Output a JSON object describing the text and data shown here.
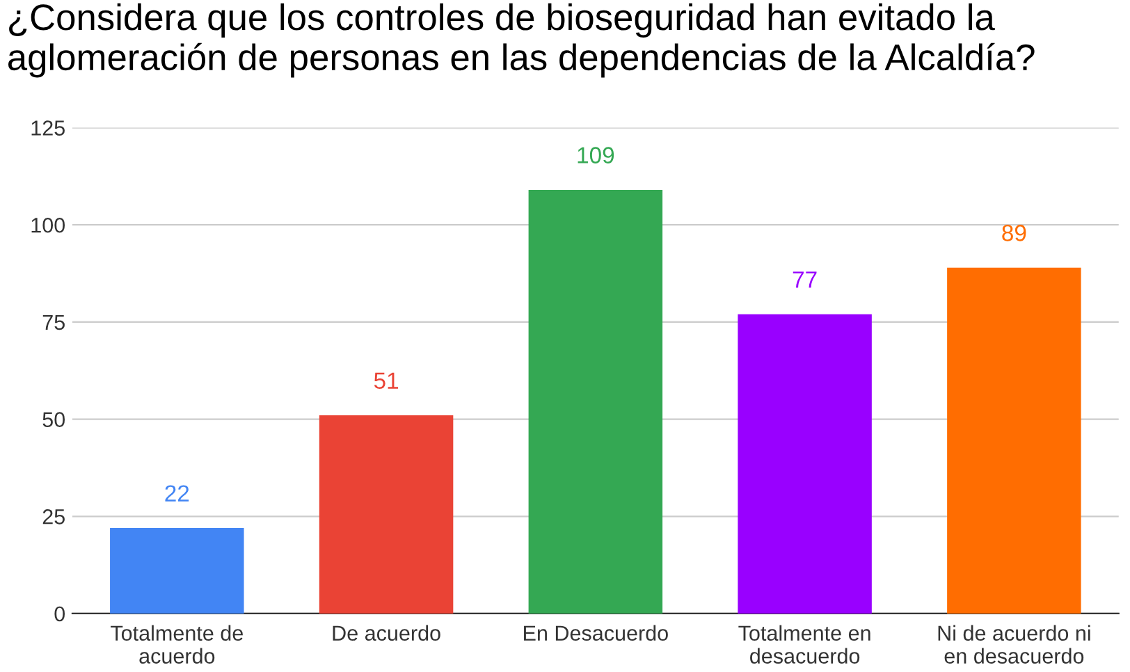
{
  "chart_data": {
    "type": "bar",
    "title": "¿Considera que los controles de bioseguridad han evitado la\naglomeración de personas en las dependencias de la Alcaldía?",
    "categories": [
      "Totalmente de\nacuerdo",
      "De acuerdo",
      "En Desacuerdo",
      "Totalmente en\ndesacuerdo",
      "Ni de acuerdo ni\nen desacuerdo"
    ],
    "values": [
      22,
      51,
      109,
      77,
      89
    ],
    "colors": [
      "#4285f4",
      "#ea4335",
      "#34a853",
      "#9900ff",
      "#ff6d01"
    ],
    "ylim": [
      0,
      125
    ],
    "yticks": [
      0,
      25,
      50,
      75,
      100,
      125
    ],
    "grid": "y",
    "data_labels": true,
    "legend": false
  }
}
